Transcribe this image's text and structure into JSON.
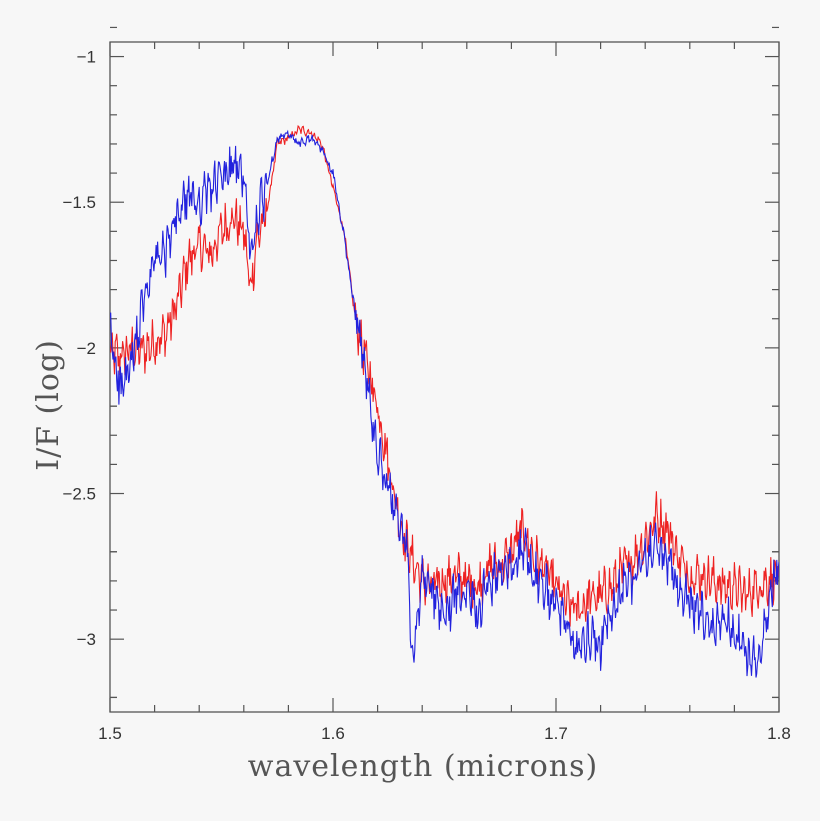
{
  "chart_data": {
    "type": "line",
    "title": "",
    "xlabel": "wavelength (microns)",
    "ylabel": "I/F (log)",
    "xlim": [
      1.5,
      1.8
    ],
    "ylim": [
      -3.25,
      -0.95
    ],
    "xticks": [
      "1.5",
      "1.6",
      "1.7",
      "1.8"
    ],
    "yticks": [
      "-1",
      "-1.5",
      "-2",
      "-2.5",
      "-3"
    ],
    "grid": false,
    "colors": {
      "red": "#ee2222",
      "blue": "#2222dd",
      "axis": "#555555",
      "background": "#f7f7f7"
    },
    "series": [
      {
        "color": "#ee2222",
        "x": [
          1.5,
          1.505,
          1.51,
          1.515,
          1.52,
          1.525,
          1.53,
          1.535,
          1.54,
          1.545,
          1.55,
          1.555,
          1.56,
          1.563,
          1.566,
          1.57,
          1.575,
          1.58,
          1.585,
          1.59,
          1.595,
          1.6,
          1.605,
          1.61,
          1.615,
          1.62,
          1.625,
          1.63,
          1.635,
          1.64,
          1.645,
          1.65,
          1.655,
          1.66,
          1.665,
          1.67,
          1.675,
          1.68,
          1.685,
          1.69,
          1.695,
          1.7,
          1.705,
          1.71,
          1.715,
          1.72,
          1.725,
          1.73,
          1.735,
          1.74,
          1.745,
          1.75,
          1.755,
          1.76,
          1.765,
          1.77,
          1.775,
          1.78,
          1.785,
          1.79,
          1.795,
          1.8
        ],
        "y": [
          -2.02,
          -2.03,
          -2.0,
          -2.01,
          -1.98,
          -1.95,
          -1.85,
          -1.7,
          -1.65,
          -1.68,
          -1.6,
          -1.55,
          -1.6,
          -1.8,
          -1.62,
          -1.55,
          -1.3,
          -1.28,
          -1.25,
          -1.26,
          -1.3,
          -1.45,
          -1.6,
          -1.9,
          -2.05,
          -2.2,
          -2.4,
          -2.6,
          -2.72,
          -2.8,
          -2.82,
          -2.8,
          -2.78,
          -2.8,
          -2.82,
          -2.75,
          -2.75,
          -2.7,
          -2.62,
          -2.72,
          -2.76,
          -2.82,
          -2.88,
          -2.9,
          -2.86,
          -2.85,
          -2.82,
          -2.76,
          -2.72,
          -2.66,
          -2.58,
          -2.62,
          -2.72,
          -2.78,
          -2.78,
          -2.8,
          -2.82,
          -2.82,
          -2.85,
          -2.82,
          -2.8,
          -2.78
        ]
      },
      {
        "color": "#2222dd",
        "x": [
          1.5,
          1.505,
          1.51,
          1.515,
          1.52,
          1.525,
          1.53,
          1.535,
          1.54,
          1.545,
          1.55,
          1.555,
          1.56,
          1.563,
          1.566,
          1.57,
          1.575,
          1.58,
          1.585,
          1.59,
          1.595,
          1.6,
          1.605,
          1.61,
          1.615,
          1.62,
          1.625,
          1.63,
          1.634,
          1.635,
          1.64,
          1.645,
          1.65,
          1.655,
          1.66,
          1.665,
          1.67,
          1.675,
          1.68,
          1.685,
          1.69,
          1.695,
          1.7,
          1.705,
          1.71,
          1.715,
          1.72,
          1.725,
          1.73,
          1.735,
          1.74,
          1.745,
          1.75,
          1.755,
          1.76,
          1.765,
          1.77,
          1.775,
          1.78,
          1.785,
          1.79,
          1.795,
          1.8
        ],
        "y": [
          -1.95,
          -2.15,
          -2.05,
          -1.85,
          -1.7,
          -1.68,
          -1.55,
          -1.48,
          -1.5,
          -1.45,
          -1.42,
          -1.38,
          -1.4,
          -1.7,
          -1.55,
          -1.45,
          -1.28,
          -1.27,
          -1.3,
          -1.28,
          -1.32,
          -1.4,
          -1.62,
          -1.88,
          -2.1,
          -2.35,
          -2.5,
          -2.62,
          -2.7,
          -3.12,
          -2.78,
          -2.86,
          -2.92,
          -2.85,
          -2.8,
          -2.9,
          -2.8,
          -2.78,
          -2.74,
          -2.68,
          -2.78,
          -2.82,
          -2.9,
          -2.95,
          -3.05,
          -2.98,
          -3.02,
          -2.92,
          -2.82,
          -2.78,
          -2.72,
          -2.68,
          -2.74,
          -2.82,
          -2.88,
          -2.92,
          -2.98,
          -2.92,
          -2.96,
          -3.05,
          -3.08,
          -2.9,
          -2.7
        ]
      }
    ]
  }
}
